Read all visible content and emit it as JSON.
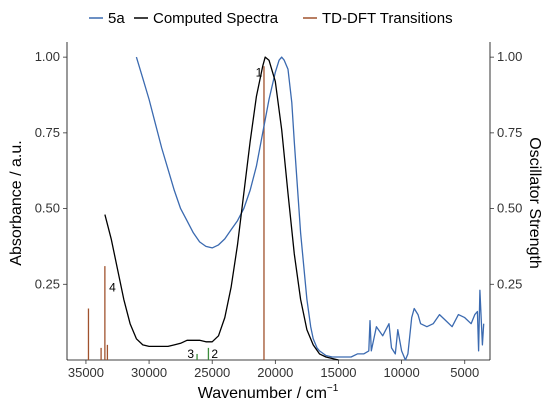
{
  "chart_data": {
    "type": "line",
    "xlabel": "Wavenumber / cm",
    "xlabel_superscript": "−1",
    "ylabel_left": "Absorbance / a.u.",
    "ylabel_right": "Oscillator Strength",
    "xlim": [
      36500,
      3000
    ],
    "ylim": [
      0,
      1.05
    ],
    "x_ticks": [
      35000,
      30000,
      25000,
      20000,
      15000,
      10000,
      5000
    ],
    "x_tick_labels": [
      "35000",
      "30000",
      "25000",
      "20000",
      "15000",
      "10000",
      "5000"
    ],
    "y_ticks": [
      0.25,
      0.5,
      0.75,
      1.0
    ],
    "y_tick_labels": [
      "0.25",
      "0.50",
      "0.75",
      "1.00"
    ],
    "grid": false,
    "legend_position": "top",
    "legend": [
      {
        "label": "5a",
        "color": "#3b6ab0"
      },
      {
        "label": "Computed Spectra",
        "color": "#000000"
      },
      {
        "label": "TD-DFT Transitions",
        "color": "#a0522d"
      }
    ],
    "series": [
      {
        "name": "5a",
        "color": "#3b6ab0",
        "x": [
          31000,
          30500,
          30000,
          29500,
          29000,
          28500,
          28000,
          27500,
          27000,
          26500,
          26000,
          25500,
          25000,
          24500,
          24000,
          23500,
          23000,
          22500,
          22000,
          21500,
          21000,
          20500,
          20000,
          19700,
          19500,
          19300,
          19000,
          18700,
          18500,
          18000,
          17500,
          17200,
          17000,
          16700,
          16500,
          16000,
          15500,
          15000,
          14500,
          14000,
          13500,
          13000,
          12600,
          12500,
          12400,
          12000,
          11500,
          11000,
          10800,
          10500,
          10300,
          10000,
          9700,
          9500,
          9200,
          9000,
          8700,
          8500,
          8000,
          7500,
          7000,
          6500,
          6000,
          5500,
          5000,
          4500,
          4200,
          4000,
          3900,
          3800,
          3600,
          3500
        ],
        "y": [
          1.0,
          0.93,
          0.86,
          0.78,
          0.7,
          0.63,
          0.56,
          0.5,
          0.46,
          0.42,
          0.39,
          0.375,
          0.37,
          0.38,
          0.4,
          0.43,
          0.46,
          0.5,
          0.56,
          0.64,
          0.75,
          0.86,
          0.95,
          0.99,
          1.0,
          0.99,
          0.96,
          0.85,
          0.72,
          0.42,
          0.2,
          0.11,
          0.07,
          0.04,
          0.03,
          0.015,
          0.01,
          0.01,
          0.01,
          0.01,
          0.02,
          0.02,
          0.03,
          0.13,
          0.03,
          0.11,
          0.08,
          0.12,
          0.04,
          0.02,
          0.1,
          0.03,
          0.0,
          0.02,
          0.14,
          0.17,
          0.15,
          0.12,
          0.11,
          0.12,
          0.15,
          0.13,
          0.11,
          0.15,
          0.14,
          0.12,
          0.15,
          0.16,
          0.03,
          0.23,
          0.05,
          0.12
        ]
      },
      {
        "name": "Computed Spectra",
        "color": "#000000",
        "x": [
          33500,
          33000,
          32500,
          32000,
          31500,
          31000,
          30500,
          30000,
          29500,
          29000,
          28500,
          28000,
          27500,
          27000,
          26500,
          26000,
          25500,
          25000,
          24500,
          24000,
          23500,
          23000,
          22500,
          22000,
          21500,
          21000,
          20800,
          20500,
          20000,
          19500,
          19000,
          18500,
          18000,
          17500,
          17000,
          16500,
          16000,
          15500,
          15000
        ],
        "y": [
          0.48,
          0.4,
          0.3,
          0.2,
          0.12,
          0.07,
          0.05,
          0.045,
          0.045,
          0.045,
          0.045,
          0.05,
          0.055,
          0.065,
          0.065,
          0.065,
          0.06,
          0.06,
          0.08,
          0.14,
          0.24,
          0.38,
          0.55,
          0.72,
          0.87,
          0.97,
          1.0,
          0.99,
          0.92,
          0.76,
          0.55,
          0.35,
          0.2,
          0.1,
          0.05,
          0.02,
          0.01,
          0.005,
          0.0
        ]
      }
    ],
    "transitions": {
      "name": "TD-DFT Transitions",
      "x": [
        34800,
        33800,
        33500,
        33300,
        26200,
        25300,
        20900
      ],
      "f": [
        0.17,
        0.04,
        0.31,
        0.05,
        0.02,
        0.04,
        0.97
      ],
      "colors": [
        "#a0522d",
        "#a0522d",
        "#a0522d",
        "#a0522d",
        "#3c8c3c",
        "#3c8c3c",
        "#a0522d"
      ]
    },
    "annotations": [
      {
        "text": "1",
        "x": 21300,
        "y": 0.95
      },
      {
        "text": "2",
        "x": 24800,
        "y": 0.02
      },
      {
        "text": "3",
        "x": 26700,
        "y": 0.02
      },
      {
        "text": "4",
        "x": 32900,
        "y": 0.24
      }
    ]
  }
}
